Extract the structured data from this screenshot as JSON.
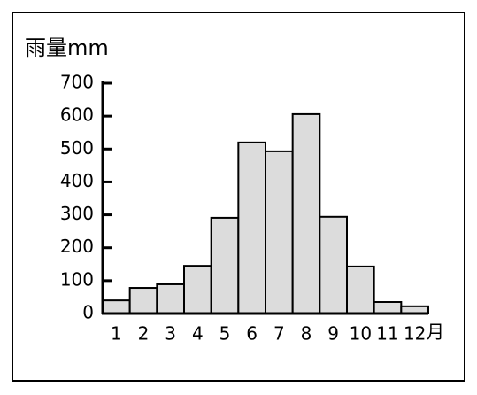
{
  "chart_data": {
    "type": "bar",
    "y_label": "雨量mm",
    "x_label": "月",
    "categories": [
      "1",
      "2",
      "3",
      "4",
      "5",
      "6",
      "7",
      "8",
      "9",
      "10",
      "11",
      "12"
    ],
    "values": [
      40,
      78,
      89,
      145,
      291,
      520,
      493,
      606,
      294,
      143,
      35,
      22
    ],
    "color": "#dcdcdc",
    "ylim": [
      0,
      700
    ],
    "yticks": [
      0,
      100,
      200,
      300,
      400,
      500,
      600,
      700
    ]
  }
}
